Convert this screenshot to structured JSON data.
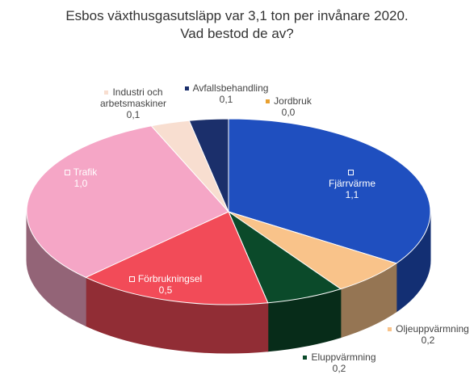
{
  "chart_data": {
    "type": "pie3d",
    "title": [
      "Esbos växthusgasutsläpp var 3,1 ton per invånare  2020.",
      "Vad bestod de av?"
    ],
    "categories": [
      "Fjärrvärme",
      "Oljeuppvärmning",
      "Eluppvärmning",
      "Förbrukningsel",
      "Trafik",
      "Industri och arbetsmaskiner",
      "Avfallsbehandling",
      "Jordbruk"
    ],
    "values": [
      1.1,
      0.2,
      0.2,
      0.5,
      1.0,
      0.1,
      0.1,
      0
    ],
    "value_labels": [
      "1,1",
      "0,2",
      "0,2",
      "0,5",
      "1,0",
      "0,1",
      "0,1",
      "0,0"
    ],
    "colors": [
      "#1f4fbf",
      "#f9c38a",
      "#0b4a2a",
      "#f24b58",
      "#f5a6c6",
      "#f8ded0",
      "#1b2f6b",
      "#e8a030"
    ]
  }
}
